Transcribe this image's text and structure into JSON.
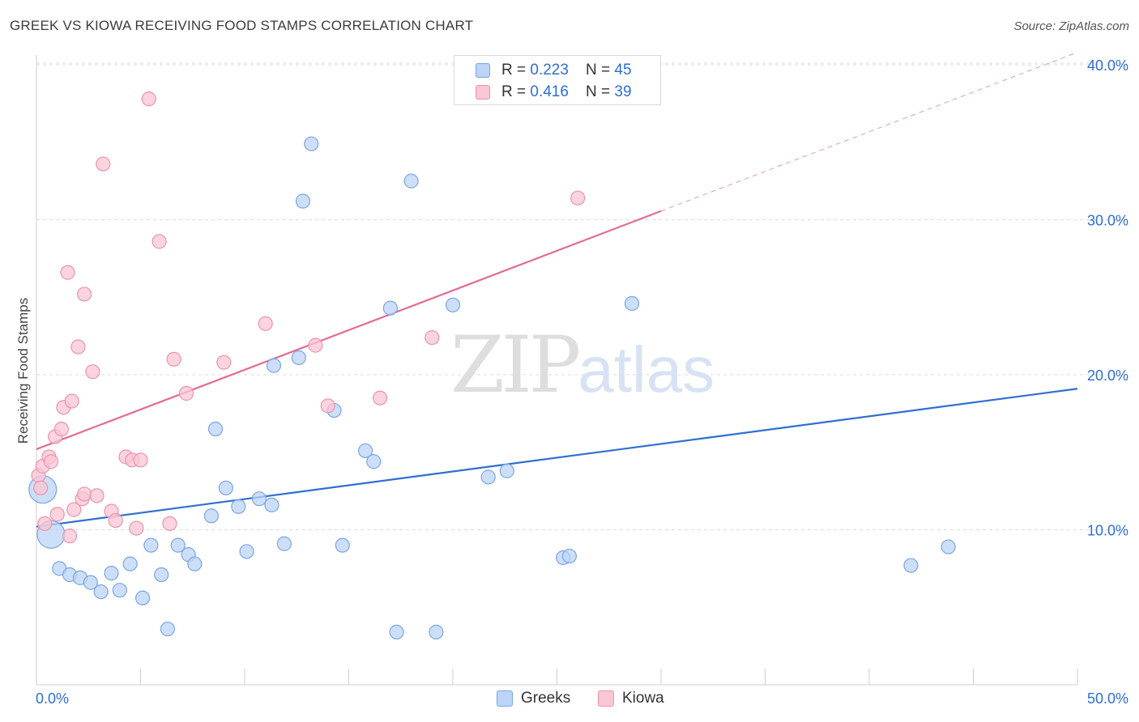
{
  "header": {
    "title": "GREEK VS KIOWA RECEIVING FOOD STAMPS CORRELATION CHART",
    "source": "Source: ZipAtlas.com"
  },
  "watermark": {
    "zip": "ZIP",
    "atlas": "atlas"
  },
  "legend": {
    "greeks": {
      "r_label": "R = ",
      "r_value": "0.223",
      "n_label": "N = ",
      "n_value": "45"
    },
    "kiowa": {
      "r_label": "R = ",
      "r_value": "0.416",
      "n_label": "N = ",
      "n_value": "39"
    }
  },
  "colors": {
    "greeks_fill": "#bcd4f5",
    "greeks_stroke": "#7aa6e3",
    "greeks_line": "#2f6fd0",
    "kiowa_fill": "#f9c6d4",
    "kiowa_stroke": "#eb93ad",
    "kiowa_line": "#e36b92",
    "tick_label": "#2f6fd0",
    "grid": "#dcdcdc"
  },
  "chart_data": {
    "type": "scatter",
    "title": "GREEK VS KIOWA RECEIVING FOOD STAMPS CORRELATION CHART",
    "xlabel": "",
    "ylabel": "Receiving Food Stamps",
    "xlim": [
      0,
      50
    ],
    "ylim": [
      0,
      40
    ],
    "x_tick_labels": [
      "0.0%",
      "50.0%"
    ],
    "y_ticks": [
      10,
      20,
      30,
      40
    ],
    "y_tick_labels": [
      "10.0%",
      "20.0%",
      "30.0%",
      "40.0%"
    ],
    "grid": true,
    "legend_position": "top-center",
    "series": [
      {
        "name": "Greeks",
        "r": 0.223,
        "n": 45,
        "trend": {
          "x0": 0,
          "y0": 10.2,
          "x1": 50,
          "y1": 19.1,
          "dash_from_x": null
        },
        "points": [
          {
            "x": 0.3,
            "y": 12.6,
            "big": true
          },
          {
            "x": 0.7,
            "y": 9.7,
            "big": true
          },
          {
            "x": 1.1,
            "y": 7.5
          },
          {
            "x": 1.6,
            "y": 7.1
          },
          {
            "x": 2.1,
            "y": 6.9
          },
          {
            "x": 2.6,
            "y": 6.6
          },
          {
            "x": 3.1,
            "y": 6.0
          },
          {
            "x": 3.6,
            "y": 7.2
          },
          {
            "x": 4.0,
            "y": 6.1
          },
          {
            "x": 4.5,
            "y": 7.8
          },
          {
            "x": 5.1,
            "y": 5.6
          },
          {
            "x": 5.5,
            "y": 9.0
          },
          {
            "x": 6.0,
            "y": 7.1
          },
          {
            "x": 6.3,
            "y": 3.6
          },
          {
            "x": 6.8,
            "y": 9.0
          },
          {
            "x": 7.3,
            "y": 8.4
          },
          {
            "x": 7.6,
            "y": 7.8
          },
          {
            "x": 8.4,
            "y": 10.9
          },
          {
            "x": 8.6,
            "y": 16.5
          },
          {
            "x": 9.1,
            "y": 12.7
          },
          {
            "x": 9.7,
            "y": 11.5
          },
          {
            "x": 10.1,
            "y": 8.6
          },
          {
            "x": 10.7,
            "y": 12.0
          },
          {
            "x": 11.3,
            "y": 11.6
          },
          {
            "x": 11.4,
            "y": 20.6
          },
          {
            "x": 11.9,
            "y": 9.1
          },
          {
            "x": 12.6,
            "y": 21.1
          },
          {
            "x": 12.8,
            "y": 31.2
          },
          {
            "x": 13.2,
            "y": 34.9
          },
          {
            "x": 14.3,
            "y": 17.7
          },
          {
            "x": 14.7,
            "y": 9.0
          },
          {
            "x": 15.8,
            "y": 15.1
          },
          {
            "x": 16.2,
            "y": 14.4
          },
          {
            "x": 17.0,
            "y": 24.3
          },
          {
            "x": 17.3,
            "y": 3.4
          },
          {
            "x": 18.0,
            "y": 32.5
          },
          {
            "x": 19.2,
            "y": 3.4
          },
          {
            "x": 20.0,
            "y": 24.5
          },
          {
            "x": 21.7,
            "y": 13.4
          },
          {
            "x": 22.6,
            "y": 13.8
          },
          {
            "x": 25.3,
            "y": 8.2
          },
          {
            "x": 25.6,
            "y": 8.3
          },
          {
            "x": 28.6,
            "y": 24.6
          },
          {
            "x": 42.0,
            "y": 7.7
          },
          {
            "x": 43.8,
            "y": 8.9
          }
        ]
      },
      {
        "name": "Kiowa",
        "r": 0.416,
        "n": 39,
        "trend": {
          "x0": 0,
          "y0": 15.2,
          "x1": 50,
          "y1": 40.8,
          "dash_from_x": 30
        },
        "points": [
          {
            "x": 0.1,
            "y": 13.5
          },
          {
            "x": 0.2,
            "y": 12.7
          },
          {
            "x": 0.3,
            "y": 14.1
          },
          {
            "x": 0.4,
            "y": 10.4
          },
          {
            "x": 0.6,
            "y": 14.7
          },
          {
            "x": 0.7,
            "y": 14.4
          },
          {
            "x": 0.9,
            "y": 16.0
          },
          {
            "x": 1.0,
            "y": 11.0
          },
          {
            "x": 1.2,
            "y": 16.5
          },
          {
            "x": 1.3,
            "y": 17.9
          },
          {
            "x": 1.5,
            "y": 26.6
          },
          {
            "x": 1.6,
            "y": 9.6
          },
          {
            "x": 1.7,
            "y": 18.3
          },
          {
            "x": 1.8,
            "y": 11.3
          },
          {
            "x": 2.0,
            "y": 21.8
          },
          {
            "x": 2.2,
            "y": 12.0
          },
          {
            "x": 2.3,
            "y": 25.2
          },
          {
            "x": 2.3,
            "y": 12.3
          },
          {
            "x": 2.7,
            "y": 20.2
          },
          {
            "x": 2.9,
            "y": 12.2
          },
          {
            "x": 3.2,
            "y": 33.6
          },
          {
            "x": 3.6,
            "y": 11.2
          },
          {
            "x": 3.8,
            "y": 10.6
          },
          {
            "x": 4.3,
            "y": 14.7
          },
          {
            "x": 4.6,
            "y": 14.5
          },
          {
            "x": 4.8,
            "y": 10.1
          },
          {
            "x": 5.0,
            "y": 14.5
          },
          {
            "x": 5.4,
            "y": 37.8
          },
          {
            "x": 5.9,
            "y": 28.6
          },
          {
            "x": 6.4,
            "y": 10.4
          },
          {
            "x": 6.6,
            "y": 21.0
          },
          {
            "x": 7.2,
            "y": 18.8
          },
          {
            "x": 9.0,
            "y": 20.8
          },
          {
            "x": 11.0,
            "y": 23.3
          },
          {
            "x": 13.4,
            "y": 21.9
          },
          {
            "x": 14.0,
            "y": 18.0
          },
          {
            "x": 16.5,
            "y": 18.5
          },
          {
            "x": 19.0,
            "y": 22.4
          },
          {
            "x": 26.0,
            "y": 31.4
          }
        ]
      }
    ]
  },
  "bottom_legend": {
    "greeks_label": "Greeks",
    "kiowa_label": "Kiowa"
  }
}
